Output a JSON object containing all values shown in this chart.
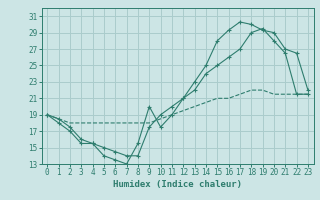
{
  "xlabel": "Humidex (Indice chaleur)",
  "bg_color": "#cce5e5",
  "grid_color": "#aacccc",
  "line_color": "#2e7d6e",
  "xlim": [
    -0.5,
    23.5
  ],
  "ylim": [
    13,
    32
  ],
  "yticks": [
    13,
    15,
    17,
    19,
    21,
    23,
    25,
    27,
    29,
    31
  ],
  "xticks": [
    0,
    1,
    2,
    3,
    4,
    5,
    6,
    7,
    8,
    9,
    10,
    11,
    12,
    13,
    14,
    15,
    16,
    17,
    18,
    19,
    20,
    21,
    22,
    23
  ],
  "line1_x": [
    0,
    1,
    2,
    3,
    4,
    5,
    6,
    7,
    8,
    9,
    10,
    11,
    12,
    13,
    14,
    15,
    16,
    17,
    18,
    19,
    20,
    21,
    22,
    23
  ],
  "line1_y": [
    19,
    18,
    17,
    15.5,
    15.5,
    14,
    13.5,
    13,
    15.5,
    20,
    17.5,
    19,
    21,
    23,
    25,
    28,
    29.3,
    30.3,
    30,
    29.3,
    29,
    27,
    26.5,
    22
  ],
  "line2_x": [
    0,
    1,
    2,
    3,
    4,
    5,
    6,
    7,
    8,
    9,
    10,
    11,
    12,
    13,
    14,
    15,
    16,
    17,
    18,
    19,
    20,
    21,
    22,
    23
  ],
  "line2_y": [
    19,
    18.5,
    17.5,
    16,
    15.5,
    15,
    14.5,
    14,
    14,
    17.5,
    19,
    20,
    21,
    22,
    24,
    25,
    26,
    27,
    29,
    29.5,
    28,
    26.5,
    21.5,
    21.5
  ],
  "line3_x": [
    0,
    1,
    2,
    3,
    4,
    5,
    6,
    7,
    8,
    9,
    10,
    11,
    12,
    13,
    14,
    15,
    16,
    17,
    18,
    19,
    20,
    21,
    22,
    23
  ],
  "line3_y": [
    19,
    18.5,
    18,
    18,
    18,
    18,
    18,
    18,
    18,
    18,
    18.5,
    19,
    19.5,
    20,
    20.5,
    21,
    21,
    21.5,
    22,
    22,
    21.5,
    21.5,
    21.5,
    21.5
  ]
}
